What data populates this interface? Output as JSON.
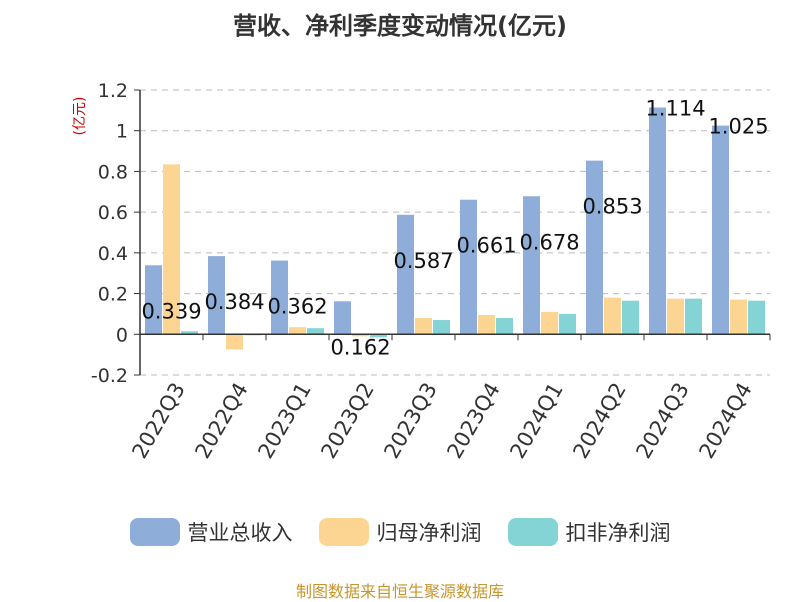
{
  "chart_data": {
    "type": "bar",
    "title": "营收、净利季度变动情况(亿元)",
    "unit_label": "(亿元)",
    "categories": [
      "2022Q3",
      "2022Q4",
      "2023Q1",
      "2023Q2",
      "2023Q3",
      "2023Q4",
      "2024Q1",
      "2024Q2",
      "2024Q3",
      "2024Q4"
    ],
    "series": [
      {
        "name": "营业总收入",
        "color": "#8eadd9",
        "values": [
          0.339,
          0.384,
          0.362,
          0.162,
          0.587,
          0.661,
          0.678,
          0.853,
          1.114,
          1.025
        ]
      },
      {
        "name": "归母净利润",
        "color": "#fdd592",
        "values": [
          0.835,
          -0.075,
          0.035,
          -0.01,
          0.08,
          0.095,
          0.11,
          0.18,
          0.175,
          0.17
        ]
      },
      {
        "name": "扣非净利润",
        "color": "#84d4d6",
        "values": [
          0.015,
          -0.005,
          0.03,
          -0.015,
          0.07,
          0.08,
          0.1,
          0.165,
          0.175,
          0.165
        ]
      }
    ],
    "data_labels": [
      "0.339",
      "0.384",
      "0.362",
      "0.162",
      "0.587",
      "0.661",
      "0.678",
      "0.853",
      "1.114",
      "1.025"
    ],
    "y_ticks": [
      "-0.2",
      "0",
      "0.2",
      "0.4",
      "0.6",
      "0.8",
      "1",
      "1.2"
    ],
    "ylim": [
      -0.2,
      1.2
    ],
    "grid": true,
    "legend_position": "bottom"
  },
  "source": "制图数据来自恒生聚源数据库"
}
